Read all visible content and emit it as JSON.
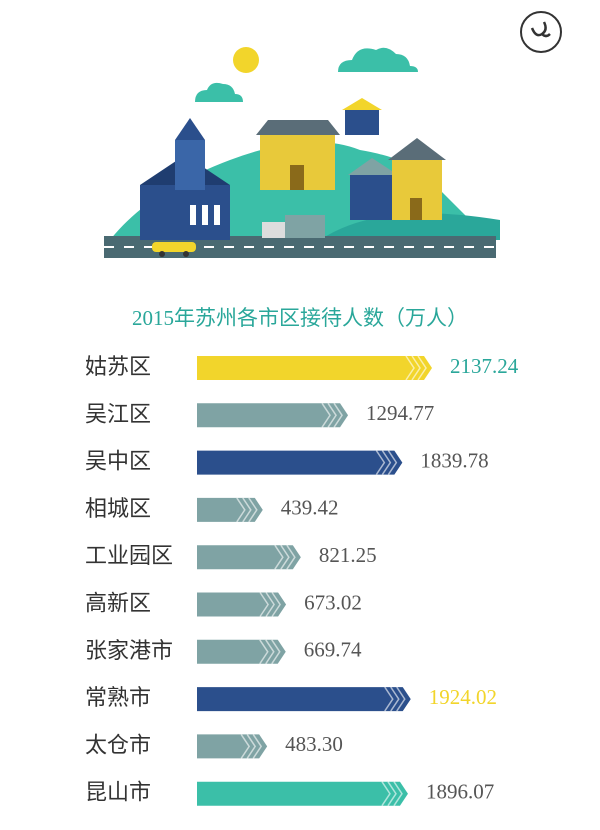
{
  "chart_data": {
    "type": "bar",
    "orientation": "horizontal",
    "title": "2015年苏州各市区接待人数（万人）",
    "categories": [
      "姑苏区",
      "吴江区",
      "吴中区",
      "相城区",
      "工业园区",
      "高新区",
      "张家港市",
      "常熟市",
      "太仓市",
      "昆山市"
    ],
    "values": [
      2137.24,
      1294.77,
      1839.78,
      439.42,
      821.25,
      673.02,
      669.74,
      1924.02,
      483.3,
      1896.07
    ],
    "value_labels": [
      "2137.24",
      "1294.77",
      "1839.78",
      "439.42",
      "821.25",
      "673.02",
      "669.74",
      "1924.02",
      "483.30",
      "1896.07"
    ],
    "colors": [
      "#f2d52b",
      "#7fa3a4",
      "#2b4f8c",
      "#7fa3a4",
      "#7fa3a4",
      "#7fa3a4",
      "#7fa3a4",
      "#2b4f8c",
      "#7fa3a4",
      "#3bbfa8"
    ],
    "label_colors": [
      "#2aa79a",
      "#555555",
      "#555555",
      "#555555",
      "#555555",
      "#555555",
      "#555555",
      "#f2d52b",
      "#555555",
      "#555555"
    ]
  }
}
